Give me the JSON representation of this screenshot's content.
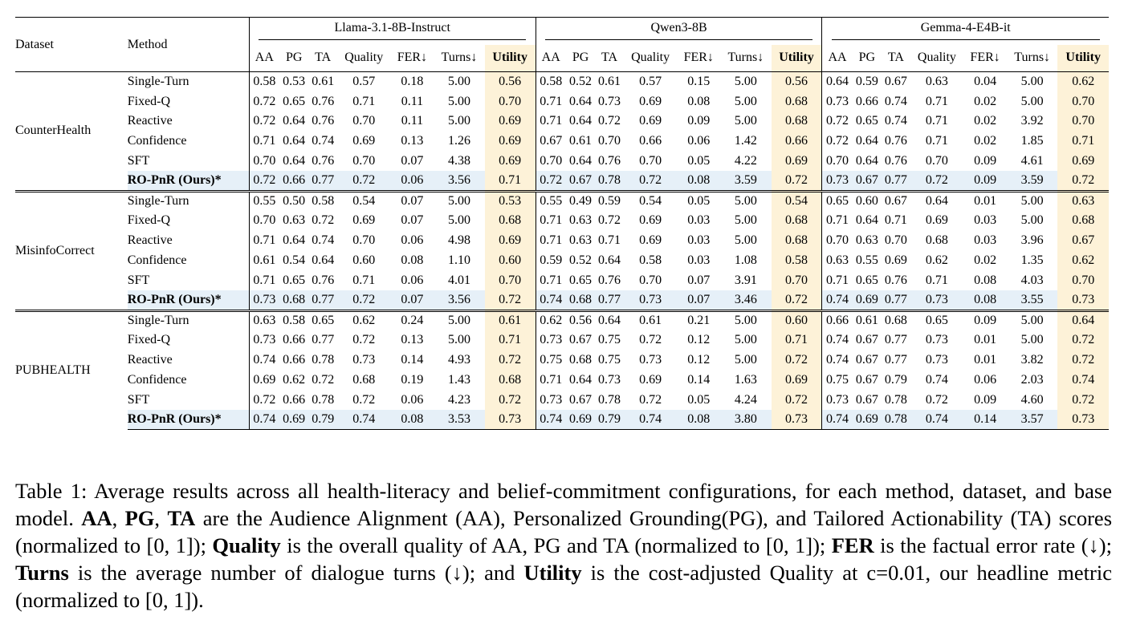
{
  "table": {
    "dataset_header": "Dataset",
    "method_header": "Method",
    "models": [
      "Llama-3.1-8B-Instruct",
      "Qwen3-8B",
      "Gemma-4-E4B-it"
    ],
    "metrics": [
      "AA",
      "PG",
      "TA",
      "Quality",
      "FER↓",
      "Turns↓",
      "Utility"
    ],
    "datasets": [
      {
        "name": "CounterHealth",
        "rows": [
          {
            "method": "Single-Turn",
            "values": [
              "0.58",
              "0.53",
              "0.61",
              "0.57",
              "0.18",
              "5.00",
              "0.56",
              "0.58",
              "0.52",
              "0.61",
              "0.57",
              "0.15",
              "5.00",
              "0.56",
              "0.64",
              "0.59",
              "0.67",
              "0.63",
              "0.04",
              "5.00",
              "0.62"
            ],
            "bold": []
          },
          {
            "method": "Fixed-Q",
            "values": [
              "0.72",
              "0.65",
              "0.76",
              "0.71",
              "0.11",
              "5.00",
              "0.70",
              "0.71",
              "0.64",
              "0.73",
              "0.69",
              "0.08",
              "5.00",
              "0.68",
              "0.73",
              "0.66",
              "0.74",
              "0.71",
              "0.02",
              "5.00",
              "0.70"
            ],
            "bold": [
              14
            ]
          },
          {
            "method": "Reactive",
            "values": [
              "0.72",
              "0.64",
              "0.76",
              "0.70",
              "0.11",
              "5.00",
              "0.69",
              "0.71",
              "0.64",
              "0.72",
              "0.69",
              "0.09",
              "5.00",
              "0.68",
              "0.72",
              "0.65",
              "0.74",
              "0.71",
              "0.02",
              "3.92",
              "0.70"
            ],
            "bold": [
              18
            ]
          },
          {
            "method": "Confidence",
            "values": [
              "0.71",
              "0.64",
              "0.74",
              "0.69",
              "0.13",
              "1.26",
              "0.69",
              "0.67",
              "0.61",
              "0.70",
              "0.66",
              "0.06",
              "1.42",
              "0.66",
              "0.72",
              "0.64",
              "0.76",
              "0.71",
              "0.02",
              "1.85",
              "0.71"
            ],
            "bold": [
              5,
              12,
              19
            ]
          },
          {
            "method": "SFT",
            "values": [
              "0.70",
              "0.64",
              "0.76",
              "0.70",
              "0.07",
              "4.38",
              "0.69",
              "0.70",
              "0.64",
              "0.76",
              "0.70",
              "0.05",
              "4.22",
              "0.69",
              "0.70",
              "0.64",
              "0.76",
              "0.70",
              "0.09",
              "4.61",
              "0.69"
            ],
            "bold": [
              11
            ]
          },
          {
            "method": "RO-PnR (Ours)*",
            "ours": true,
            "values": [
              "0.72",
              "0.66",
              "0.77",
              "0.72",
              "0.06",
              "3.56",
              "0.71",
              "0.72",
              "0.67",
              "0.78",
              "0.72",
              "0.08",
              "3.59",
              "0.72",
              "0.73",
              "0.67",
              "0.77",
              "0.72",
              "0.09",
              "3.59",
              "0.72"
            ],
            "bold": [
              0,
              1,
              2,
              3,
              4,
              6,
              7,
              8,
              9,
              10,
              13,
              15,
              16,
              17,
              20
            ]
          }
        ]
      },
      {
        "name": "MisinfoCorrect",
        "rows": [
          {
            "method": "Single-Turn",
            "values": [
              "0.55",
              "0.50",
              "0.58",
              "0.54",
              "0.07",
              "5.00",
              "0.53",
              "0.55",
              "0.49",
              "0.59",
              "0.54",
              "0.05",
              "5.00",
              "0.54",
              "0.65",
              "0.60",
              "0.67",
              "0.64",
              "0.01",
              "5.00",
              "0.63"
            ],
            "bold": [
              18
            ]
          },
          {
            "method": "Fixed-Q",
            "values": [
              "0.70",
              "0.63",
              "0.72",
              "0.69",
              "0.07",
              "5.00",
              "0.68",
              "0.71",
              "0.63",
              "0.72",
              "0.69",
              "0.03",
              "5.00",
              "0.68",
              "0.71",
              "0.64",
              "0.71",
              "0.69",
              "0.03",
              "5.00",
              "0.68"
            ],
            "bold": [
              11
            ]
          },
          {
            "method": "Reactive",
            "values": [
              "0.71",
              "0.64",
              "0.74",
              "0.70",
              "0.06",
              "4.98",
              "0.69",
              "0.71",
              "0.63",
              "0.71",
              "0.69",
              "0.03",
              "5.00",
              "0.68",
              "0.70",
              "0.63",
              "0.70",
              "0.68",
              "0.03",
              "3.96",
              "0.67"
            ],
            "bold": []
          },
          {
            "method": "Confidence",
            "values": [
              "0.61",
              "0.54",
              "0.64",
              "0.60",
              "0.08",
              "1.10",
              "0.60",
              "0.59",
              "0.52",
              "0.64",
              "0.58",
              "0.03",
              "1.08",
              "0.58",
              "0.63",
              "0.55",
              "0.69",
              "0.62",
              "0.02",
              "1.35",
              "0.62"
            ],
            "bold": [
              5,
              12,
              19
            ]
          },
          {
            "method": "SFT",
            "values": [
              "0.71",
              "0.65",
              "0.76",
              "0.71",
              "0.06",
              "4.01",
              "0.70",
              "0.71",
              "0.65",
              "0.76",
              "0.70",
              "0.07",
              "3.91",
              "0.70",
              "0.71",
              "0.65",
              "0.76",
              "0.71",
              "0.08",
              "4.03",
              "0.70"
            ],
            "bold": [
              4
            ]
          },
          {
            "method": "RO-PnR (Ours)*",
            "ours": true,
            "values": [
              "0.73",
              "0.68",
              "0.77",
              "0.72",
              "0.07",
              "3.56",
              "0.72",
              "0.74",
              "0.68",
              "0.77",
              "0.73",
              "0.07",
              "3.46",
              "0.72",
              "0.74",
              "0.69",
              "0.77",
              "0.73",
              "0.08",
              "3.55",
              "0.73"
            ],
            "bold": [
              0,
              1,
              2,
              3,
              6,
              7,
              8,
              9,
              10,
              13,
              14,
              15,
              16,
              17,
              20
            ]
          }
        ]
      },
      {
        "name": "PUBHEALTH",
        "rows": [
          {
            "method": "Single-Turn",
            "values": [
              "0.63",
              "0.58",
              "0.65",
              "0.62",
              "0.24",
              "5.00",
              "0.61",
              "0.62",
              "0.56",
              "0.64",
              "0.61",
              "0.21",
              "5.00",
              "0.60",
              "0.66",
              "0.61",
              "0.68",
              "0.65",
              "0.09",
              "5.00",
              "0.64"
            ],
            "bold": []
          },
          {
            "method": "Fixed-Q",
            "values": [
              "0.73",
              "0.66",
              "0.77",
              "0.72",
              "0.13",
              "5.00",
              "0.71",
              "0.73",
              "0.67",
              "0.75",
              "0.72",
              "0.12",
              "5.00",
              "0.71",
              "0.74",
              "0.67",
              "0.77",
              "0.73",
              "0.01",
              "5.00",
              "0.72"
            ],
            "bold": [
              18
            ]
          },
          {
            "method": "Reactive",
            "values": [
              "0.74",
              "0.66",
              "0.78",
              "0.73",
              "0.14",
              "4.93",
              "0.72",
              "0.75",
              "0.68",
              "0.75",
              "0.73",
              "0.12",
              "5.00",
              "0.72",
              "0.74",
              "0.67",
              "0.77",
              "0.73",
              "0.01",
              "3.82",
              "0.72"
            ],
            "bold": [
              7,
              18
            ]
          },
          {
            "method": "Confidence",
            "values": [
              "0.69",
              "0.62",
              "0.72",
              "0.68",
              "0.19",
              "1.43",
              "0.68",
              "0.71",
              "0.64",
              "0.73",
              "0.69",
              "0.14",
              "1.63",
              "0.69",
              "0.75",
              "0.67",
              "0.79",
              "0.74",
              "0.06",
              "2.03",
              "0.74"
            ],
            "bold": [
              5,
              12,
              14,
              16,
              17,
              19,
              20
            ]
          },
          {
            "method": "SFT",
            "values": [
              "0.72",
              "0.66",
              "0.78",
              "0.72",
              "0.06",
              "4.23",
              "0.72",
              "0.73",
              "0.67",
              "0.78",
              "0.72",
              "0.05",
              "4.24",
              "0.72",
              "0.73",
              "0.67",
              "0.78",
              "0.72",
              "0.09",
              "4.60",
              "0.72"
            ],
            "bold": [
              4,
              11
            ]
          },
          {
            "method": "RO-PnR (Ours)*",
            "ours": true,
            "values": [
              "0.74",
              "0.69",
              "0.79",
              "0.74",
              "0.08",
              "3.53",
              "0.73",
              "0.74",
              "0.69",
              "0.79",
              "0.74",
              "0.08",
              "3.80",
              "0.73",
              "0.74",
              "0.69",
              "0.78",
              "0.74",
              "0.14",
              "3.57",
              "0.73"
            ],
            "bold": [
              0,
              1,
              2,
              3,
              6,
              8,
              9,
              10,
              13,
              15
            ]
          }
        ]
      }
    ]
  },
  "caption": {
    "p1": "Table 1: Average results across all health-literacy and belief-commitment configurations, for each method, dataset, and base model. ",
    "aa": "AA",
    "sep1": ", ",
    "pg": "PG",
    "sep2": ", ",
    "ta": "TA",
    "p2": " are the Audience Alignment (AA), Personalized Grounding(PG), and Tailored Actionability (TA) scores (normalized to [0, 1]); ",
    "quality": "Quality",
    "p3": " is the overall quality of AA, PG and TA (normalized to [0, 1]); ",
    "fer": "FER",
    "p4": " is the factual error rate (↓); ",
    "turns": "Turns",
    "p5": " is the average number of dialogue turns (↓); and ",
    "utility": "Utility",
    "p6": " is the cost-adjusted Quality at c=0.01, our headline metric (normalized to [0, 1])."
  }
}
